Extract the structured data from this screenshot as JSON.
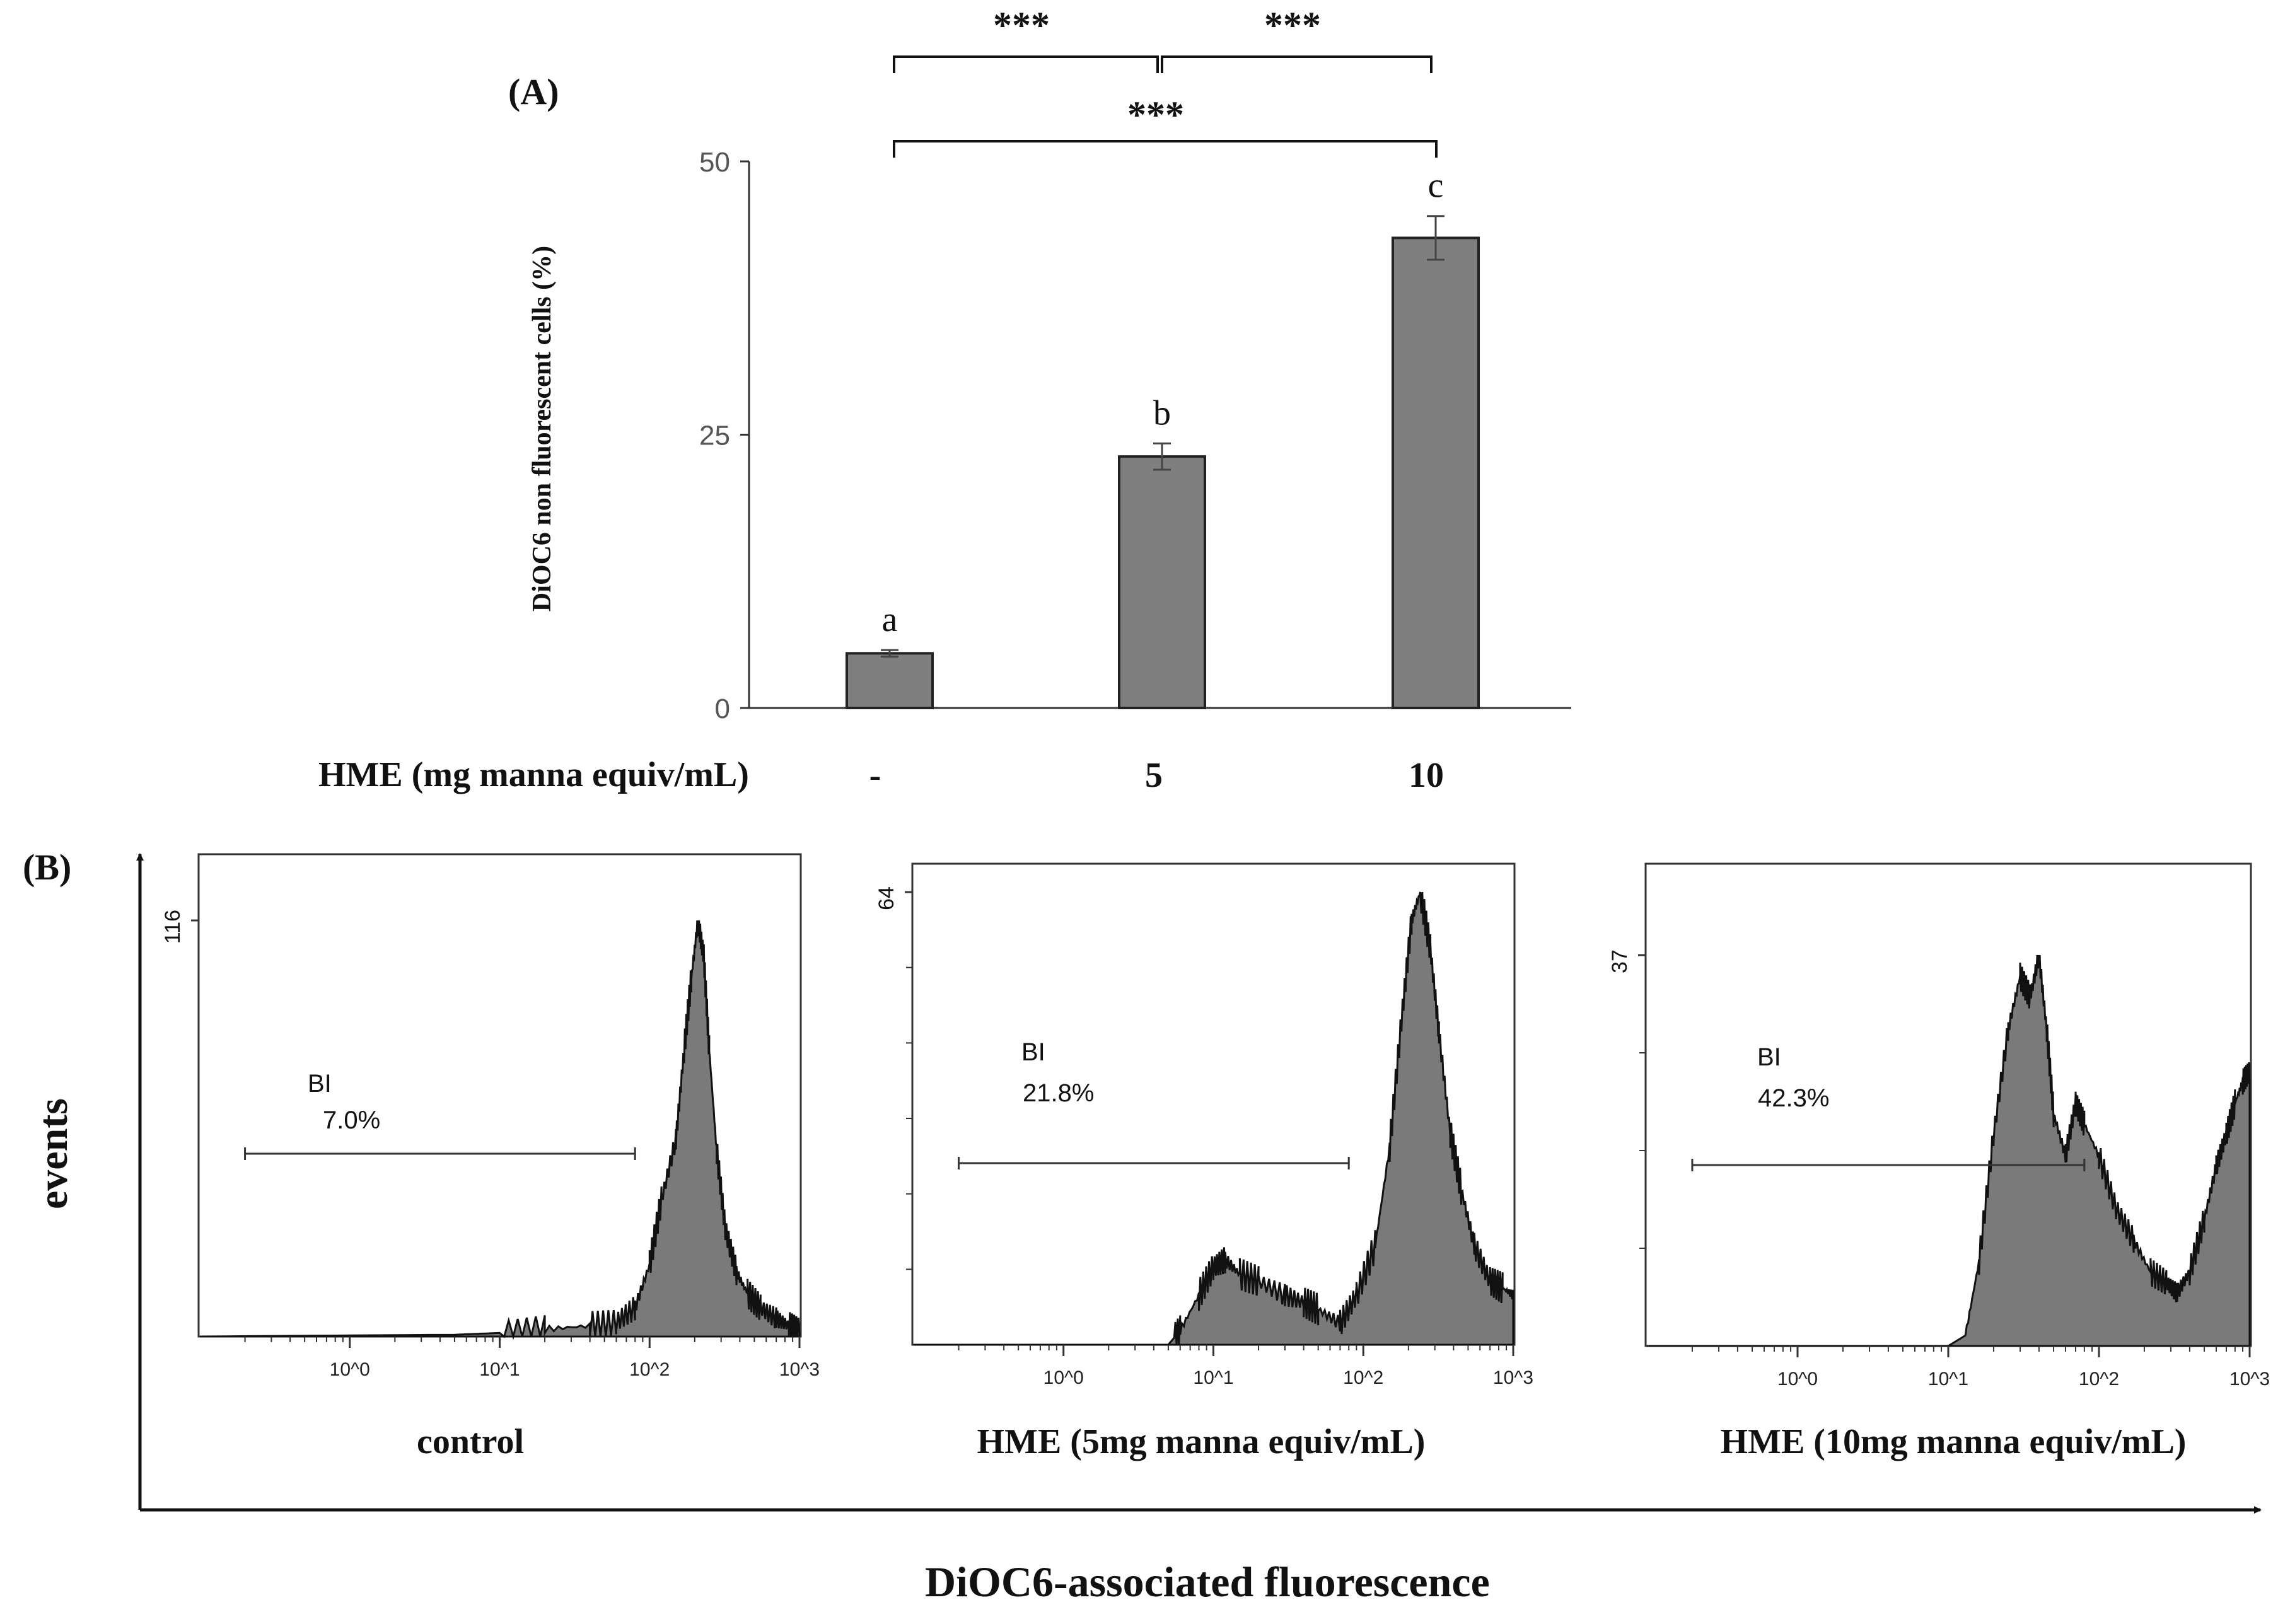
{
  "figure": {
    "panel_a_label": "(A)",
    "panel_b_label": "(B)"
  },
  "chart_data": [
    {
      "type": "bar",
      "panel": "A",
      "title": "",
      "ylabel": "DiOC6 non fluorescent cells (%)",
      "xlabel": "HME (mg manna equiv/mL)",
      "categories": [
        "-",
        "5",
        "10"
      ],
      "values": [
        5,
        23,
        43
      ],
      "errors": [
        0.3,
        1.2,
        2.0
      ],
      "letters": [
        "a",
        "b",
        "c"
      ],
      "ylim": [
        0,
        50
      ],
      "yticks": [
        0,
        25,
        50
      ],
      "ytick_labels": [
        "0",
        "25",
        "50"
      ],
      "significance": [
        {
          "from": 0,
          "to": 1,
          "label": "***"
        },
        {
          "from": 1,
          "to": 2,
          "label": "***"
        },
        {
          "from": 0,
          "to": 2,
          "label": "***"
        }
      ]
    },
    {
      "type": "area",
      "panel": "B",
      "subtype": "flow-cytometry-histogram",
      "shared_xlabel": "DiOC6-associated fluorescence",
      "shared_ylabel": "events",
      "xscale": "log",
      "xlim": [
        0.1,
        1000
      ],
      "xtick_labels": [
        "10^0",
        "10^1",
        "10^2",
        "10^3"
      ],
      "histograms": [
        {
          "caption": "control",
          "ymax": 116,
          "ymax_label": "116",
          "gate_name": "BI",
          "gate_percent": "7.0%",
          "gate_range": [
            0.2,
            80
          ],
          "x": [
            0.1,
            5,
            10,
            20,
            40,
            60,
            80,
            100,
            120,
            150,
            170,
            190,
            210,
            230,
            250,
            280,
            320,
            380,
            450,
            550,
            700,
            850,
            1000
          ],
          "y": [
            0,
            0.5,
            1,
            2,
            3,
            4,
            8,
            20,
            38,
            55,
            80,
            100,
            116,
            106,
            80,
            52,
            30,
            18,
            12,
            8,
            5,
            3,
            1
          ]
        },
        {
          "caption": "HME (5mg manna equiv/mL)",
          "ymax": 64,
          "ymax_label": "64",
          "gate_name": "BI",
          "gate_percent": "21.8%",
          "gate_range": [
            0.2,
            80
          ],
          "x": [
            0.1,
            3,
            5,
            6,
            8,
            10,
            12,
            15,
            20,
            30,
            40,
            50,
            70,
            90,
            120,
            150,
            180,
            210,
            240,
            280,
            320,
            380,
            450,
            550,
            700,
            850,
            1000
          ],
          "y": [
            0,
            0,
            0,
            2,
            7,
            11,
            12,
            10,
            9,
            7,
            6,
            5,
            3,
            7,
            14,
            28,
            46,
            60,
            64,
            56,
            44,
            30,
            22,
            14,
            9,
            8,
            7
          ]
        },
        {
          "caption": "HME (10mg manna equiv/mL)",
          "ymax": 37,
          "ymax_label": "37",
          "gate_name": "BI",
          "gate_percent": "42.3%",
          "gate_range": [
            0.2,
            80
          ],
          "x": [
            0.1,
            5,
            10,
            13,
            16,
            20,
            25,
            30,
            35,
            40,
            45,
            50,
            60,
            70,
            80,
            100,
            130,
            170,
            220,
            280,
            330,
            400,
            500,
            600,
            700,
            800,
            900,
            1000
          ],
          "y": [
            0,
            0,
            0,
            1,
            8,
            20,
            30,
            35,
            33,
            37,
            30,
            22,
            18,
            23,
            21,
            18,
            13,
            10,
            7,
            6,
            5,
            7,
            12,
            17,
            20,
            23,
            25,
            26
          ]
        }
      ]
    }
  ]
}
